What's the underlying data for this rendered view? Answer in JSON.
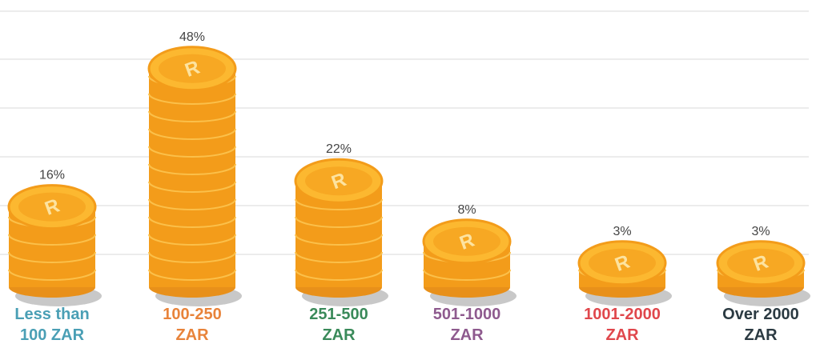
{
  "chart_data": {
    "type": "coin-stack",
    "categories": [
      "Less than 100 ZAR",
      "100-250 ZAR",
      "251-500 ZAR",
      "501-1000 ZAR",
      "1001-2000 ZAR",
      "Over 2000 ZAR"
    ],
    "values": [
      16,
      48,
      22,
      8,
      3,
      3
    ],
    "value_labels": [
      "16%",
      "48%",
      "22%",
      "8%",
      "3%",
      "3%"
    ],
    "category_colors": [
      "#4a9fb5",
      "#e8833a",
      "#3a8a5a",
      "#8e5a8e",
      "#e0474c",
      "#2b3a42"
    ],
    "color": "#f7a823"
  }
}
